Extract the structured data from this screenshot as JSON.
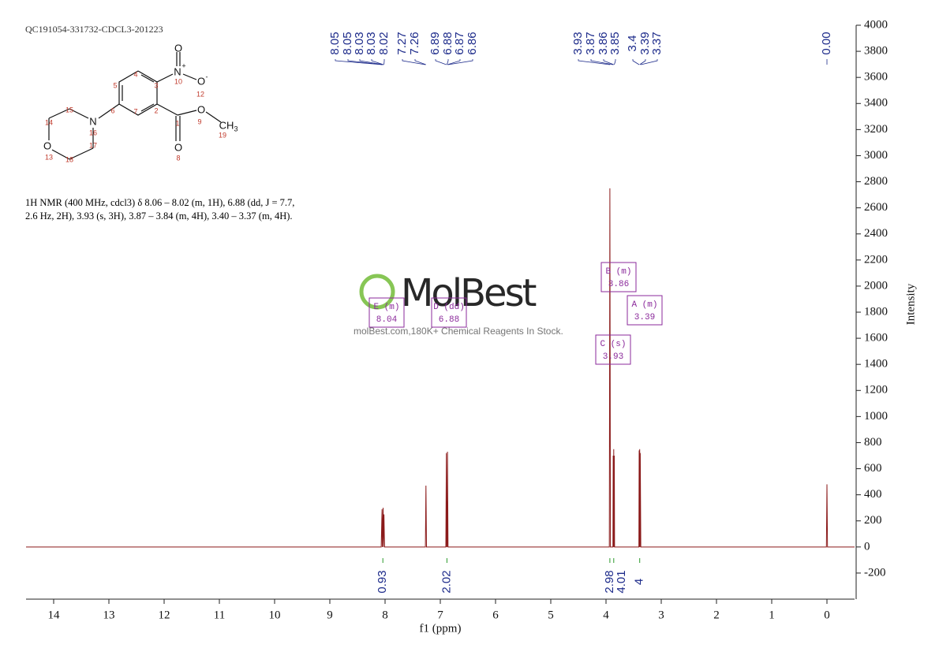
{
  "sample_id": "QC191054-331732-CDCL3-201223",
  "description": [
    "1H NMR (400 MHz, cdcl3) δ 8.06 – 8.02 (m, 1H), 6.88 (dd, J = 7.7,",
    "2.6 Hz, 2H), 3.93 (s, 3H), 3.87 – 3.84 (m, 4H), 3.40 – 3.37 (m, 4H)."
  ],
  "watermark": {
    "logo": "MolBest",
    "text": "molBest.com,180K+ Chemical Reagents In Stock."
  },
  "molecule": {
    "symbols": [
      "N",
      "+",
      "O",
      "O",
      "-",
      "O",
      "CH",
      "3",
      "O",
      "N",
      "O"
    ],
    "numbers": [
      "1",
      "2",
      "3",
      "4",
      "5",
      "6",
      "7",
      "8",
      "9",
      "10",
      "12",
      "13",
      "14",
      "15",
      "16",
      "17",
      "18",
      "19"
    ]
  },
  "chart_data": {
    "type": "line",
    "xlabel": "f1 (ppm)",
    "ylabel": "Intensity",
    "xlim": [
      14.5,
      -0.5
    ],
    "ylim": [
      -400,
      4000
    ],
    "xticks": [
      14,
      13,
      12,
      11,
      10,
      9,
      8,
      7,
      6,
      5,
      4,
      3,
      2,
      1,
      0
    ],
    "yticks": [
      -200,
      0,
      200,
      400,
      600,
      800,
      1000,
      1200,
      1400,
      1600,
      1800,
      2000,
      2200,
      2400,
      2600,
      2800,
      3000,
      3200,
      3400,
      3600,
      3800,
      4000
    ],
    "x": [
      14.5,
      8.07,
      8.055,
      8.05,
      8.035,
      8.03,
      8.02,
      8.01,
      7.27,
      7.26,
      7.25,
      6.9,
      6.89,
      6.885,
      6.88,
      6.875,
      6.87,
      6.86,
      3.94,
      3.93,
      3.92,
      3.875,
      3.87,
      3.865,
      3.86,
      3.855,
      3.85,
      3.845,
      3.405,
      3.4,
      3.395,
      3.39,
      3.385,
      3.38,
      3.37,
      0.01,
      0,
      -0.01,
      -0.5
    ],
    "series": [
      {
        "color": "#8b1a1a",
        "values": [
          0,
          0,
          290,
          0,
          300,
          0,
          250,
          0,
          0,
          470,
          0,
          0,
          720,
          0,
          350,
          0,
          730,
          0,
          0,
          2750,
          0,
          0,
          700,
          0,
          750,
          0,
          700,
          0,
          0,
          740,
          0,
          750,
          0,
          720,
          0,
          0,
          480,
          0,
          0
        ]
      }
    ],
    "peak_labels": [
      8.05,
      8.05,
      8.03,
      8.03,
      8.02,
      7.27,
      7.26,
      6.89,
      6.88,
      6.87,
      6.86,
      3.93,
      3.87,
      3.86,
      3.85,
      3.4,
      3.39,
      3.37,
      {
        "value": 0,
        "label": "0.00"
      }
    ],
    "integrals": [
      {
        "x": 8.04,
        "value": 0.93
      },
      {
        "x": 6.88,
        "value": 2.02
      },
      {
        "x": 3.93,
        "value": 2.98
      },
      {
        "x": 3.86,
        "value": 4.01
      },
      {
        "x": 3.39,
        "value": 4.0
      }
    ],
    "multiplets": [
      {
        "label": "E (m)",
        "value": 8.04
      },
      {
        "label": "D (dd)",
        "value": 6.88
      },
      {
        "label": "B (m)",
        "value": 3.86
      },
      {
        "label": "A (m)",
        "value": 3.39
      },
      {
        "label": "C (s)",
        "value": 3.93
      }
    ]
  }
}
